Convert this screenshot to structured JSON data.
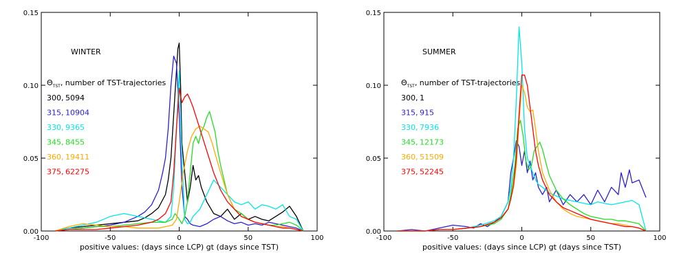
{
  "legend_symbol": "Θ",
  "legend_symbol_sub": "TST",
  "chart_data": [
    {
      "type": "line",
      "title": "WINTER",
      "xlabel": "positive values: (days since LCP) gt (days since TST)",
      "xlim": [
        -100,
        100
      ],
      "ylim": [
        0,
        0.15
      ],
      "xticks": [
        -100,
        -50,
        0,
        50,
        100
      ],
      "yticks": [
        0.0,
        0.05,
        0.1,
        0.15
      ],
      "ytick_labels": [
        "0.00",
        "0.05",
        "0.10",
        "0.15"
      ],
      "legend_header": ", number of TST-trajectories",
      "series": [
        {
          "name": "300",
          "count": "5094",
          "color": "#000000",
          "x": [
            -90,
            -80,
            -70,
            -60,
            -50,
            -40,
            -30,
            -25,
            -20,
            -15,
            -10,
            -8,
            -6,
            -4,
            -2,
            -1,
            0,
            1,
            2,
            4,
            6,
            8,
            10,
            12,
            14,
            16,
            18,
            20,
            25,
            30,
            35,
            40,
            45,
            50,
            55,
            60,
            65,
            70,
            75,
            80,
            85,
            90
          ],
          "y": [
            0.0,
            0.002,
            0.003,
            0.004,
            0.005,
            0.006,
            0.007,
            0.009,
            0.012,
            0.016,
            0.025,
            0.035,
            0.05,
            0.08,
            0.11,
            0.125,
            0.129,
            0.1,
            0.06,
            0.04,
            0.02,
            0.03,
            0.045,
            0.035,
            0.038,
            0.03,
            0.025,
            0.02,
            0.012,
            0.01,
            0.015,
            0.008,
            0.012,
            0.008,
            0.01,
            0.008,
            0.007,
            0.01,
            0.013,
            0.017,
            0.01,
            0.0
          ]
        },
        {
          "name": "315",
          "count": "10904",
          "color": "#2a1fd1",
          "x": [
            -90,
            -80,
            -70,
            -60,
            -50,
            -40,
            -30,
            -25,
            -20,
            -15,
            -12,
            -10,
            -8,
            -6,
            -4,
            -2,
            0,
            2,
            4,
            6,
            8,
            10,
            15,
            20,
            25,
            30,
            35,
            40,
            45,
            50,
            55,
            60,
            65,
            70,
            75,
            80,
            85,
            90
          ],
          "y": [
            0.0,
            0.001,
            0.002,
            0.003,
            0.004,
            0.006,
            0.01,
            0.013,
            0.018,
            0.028,
            0.04,
            0.05,
            0.07,
            0.1,
            0.12,
            0.115,
            0.08,
            0.03,
            0.01,
            0.008,
            0.005,
            0.004,
            0.003,
            0.005,
            0.008,
            0.01,
            0.007,
            0.005,
            0.006,
            0.004,
            0.005,
            0.004,
            0.006,
            0.005,
            0.004,
            0.003,
            0.002,
            0.0
          ]
        },
        {
          "name": "330",
          "count": "9365",
          "color": "#00e6e6",
          "x": [
            -90,
            -80,
            -70,
            -60,
            -50,
            -40,
            -30,
            -20,
            -15,
            -10,
            -6,
            -4,
            -2,
            0,
            2,
            4,
            6,
            8,
            10,
            15,
            20,
            25,
            30,
            35,
            40,
            45,
            50,
            55,
            60,
            65,
            70,
            75,
            80,
            85,
            90
          ],
          "y": [
            0.0,
            0.002,
            0.004,
            0.006,
            0.01,
            0.012,
            0.01,
            0.008,
            0.007,
            0.006,
            0.01,
            0.03,
            0.07,
            0.11,
            0.05,
            0.008,
            0.005,
            0.006,
            0.01,
            0.015,
            0.025,
            0.035,
            0.03,
            0.025,
            0.02,
            0.018,
            0.02,
            0.015,
            0.018,
            0.017,
            0.015,
            0.018,
            0.01,
            0.008,
            0.0
          ]
        },
        {
          "name": "345",
          "count": "8455",
          "color": "#22dd22",
          "x": [
            -90,
            -80,
            -70,
            -60,
            -50,
            -40,
            -30,
            -20,
            -15,
            -10,
            -5,
            -3,
            0,
            2,
            4,
            6,
            8,
            10,
            12,
            14,
            16,
            18,
            20,
            22,
            24,
            26,
            28,
            30,
            35,
            40,
            45,
            50,
            55,
            60,
            65,
            70,
            75,
            80,
            85,
            90
          ],
          "y": [
            0.0,
            0.001,
            0.002,
            0.003,
            0.003,
            0.004,
            0.005,
            0.006,
            0.006,
            0.006,
            0.008,
            0.012,
            0.008,
            0.005,
            0.01,
            0.02,
            0.04,
            0.06,
            0.065,
            0.06,
            0.068,
            0.072,
            0.078,
            0.082,
            0.075,
            0.068,
            0.055,
            0.045,
            0.025,
            0.015,
            0.012,
            0.008,
            0.006,
            0.005,
            0.004,
            0.004,
            0.005,
            0.006,
            0.004,
            0.0
          ]
        },
        {
          "name": "360",
          "count": "19411",
          "color": "#ffaa00",
          "x": [
            -90,
            -80,
            -70,
            -60,
            -50,
            -40,
            -30,
            -20,
            -15,
            -10,
            -5,
            -2,
            0,
            3,
            6,
            9,
            12,
            15,
            18,
            21,
            24,
            27,
            30,
            35,
            40,
            45,
            50,
            55,
            60,
            65,
            70,
            75,
            80,
            85,
            90
          ],
          "y": [
            0.0,
            0.003,
            0.005,
            0.004,
            0.003,
            0.003,
            0.002,
            0.002,
            0.002,
            0.003,
            0.004,
            0.008,
            0.02,
            0.04,
            0.055,
            0.065,
            0.07,
            0.072,
            0.07,
            0.068,
            0.06,
            0.05,
            0.04,
            0.025,
            0.015,
            0.01,
            0.008,
            0.006,
            0.005,
            0.004,
            0.003,
            0.003,
            0.002,
            0.001,
            0.0
          ]
        },
        {
          "name": "375",
          "count": "62275",
          "color": "#ff0000",
          "x": [
            -90,
            -80,
            -70,
            -60,
            -50,
            -40,
            -30,
            -20,
            -15,
            -10,
            -6,
            -4,
            -2,
            0,
            2,
            4,
            6,
            8,
            10,
            15,
            20,
            25,
            30,
            35,
            40,
            45,
            50,
            55,
            60,
            65,
            70,
            75,
            80,
            85,
            90
          ],
          "y": [
            0.0,
            0.001,
            0.001,
            0.001,
            0.002,
            0.003,
            0.004,
            0.006,
            0.008,
            0.012,
            0.02,
            0.04,
            0.07,
            0.098,
            0.088,
            0.092,
            0.094,
            0.09,
            0.085,
            0.07,
            0.055,
            0.04,
            0.028,
            0.02,
            0.015,
            0.01,
            0.008,
            0.006,
            0.005,
            0.004,
            0.003,
            0.002,
            0.002,
            0.001,
            0.0
          ]
        }
      ]
    },
    {
      "type": "line",
      "title": "SUMMER",
      "xlabel": "positive values: (days since LCP) gt (days since TST)",
      "xlim": [
        -100,
        100
      ],
      "ylim": [
        0,
        0.15
      ],
      "xticks": [
        -100,
        -50,
        0,
        50,
        100
      ],
      "yticks": [
        0.0,
        0.05,
        0.1,
        0.15
      ],
      "ytick_labels": [
        "0.00",
        "0.05",
        "0.10",
        "0.15"
      ],
      "legend_header": ", number of TST-trajectories",
      "series": [
        {
          "name": "300",
          "count": "1",
          "color": "#000000",
          "x": [],
          "y": []
        },
        {
          "name": "315",
          "count": "915",
          "color": "#2a1fd1",
          "x": [
            -90,
            -80,
            -70,
            -60,
            -50,
            -40,
            -35,
            -30,
            -25,
            -20,
            -15,
            -10,
            -8,
            -6,
            -4,
            -2,
            0,
            2,
            4,
            6,
            8,
            10,
            12,
            15,
            18,
            20,
            25,
            30,
            35,
            40,
            45,
            50,
            55,
            60,
            65,
            70,
            72,
            75,
            78,
            80,
            85,
            90
          ],
          "y": [
            0.0,
            0.001,
            0.0,
            0.002,
            0.004,
            0.003,
            0.002,
            0.005,
            0.003,
            0.006,
            0.01,
            0.02,
            0.04,
            0.05,
            0.062,
            0.058,
            0.045,
            0.055,
            0.04,
            0.048,
            0.035,
            0.04,
            0.03,
            0.025,
            0.03,
            0.02,
            0.028,
            0.018,
            0.025,
            0.02,
            0.025,
            0.018,
            0.028,
            0.02,
            0.03,
            0.025,
            0.04,
            0.03,
            0.042,
            0.033,
            0.035,
            0.023
          ]
        },
        {
          "name": "330",
          "count": "7936",
          "color": "#00e6e6",
          "x": [
            -90,
            -80,
            -70,
            -60,
            -50,
            -40,
            -30,
            -20,
            -15,
            -10,
            -8,
            -6,
            -4,
            -2,
            0,
            2,
            4,
            6,
            8,
            10,
            12,
            15,
            20,
            25,
            30,
            35,
            40,
            45,
            50,
            55,
            60,
            65,
            70,
            75,
            80,
            85,
            90
          ],
          "y": [
            0.0,
            0.0,
            0.0,
            0.001,
            0.001,
            0.002,
            0.004,
            0.007,
            0.01,
            0.02,
            0.03,
            0.05,
            0.09,
            0.14,
            0.115,
            0.07,
            0.05,
            0.045,
            0.04,
            0.035,
            0.032,
            0.03,
            0.026,
            0.024,
            0.022,
            0.021,
            0.02,
            0.019,
            0.018,
            0.02,
            0.019,
            0.018,
            0.019,
            0.02,
            0.021,
            0.018,
            0.0
          ]
        },
        {
          "name": "345",
          "count": "12173",
          "color": "#22dd22",
          "x": [
            -90,
            -80,
            -70,
            -60,
            -50,
            -40,
            -30,
            -20,
            -15,
            -10,
            -8,
            -5,
            -3,
            -1,
            1,
            3,
            5,
            7,
            9,
            11,
            13,
            15,
            18,
            20,
            25,
            30,
            35,
            40,
            45,
            50,
            55,
            60,
            65,
            70,
            75,
            80,
            85,
            90
          ],
          "y": [
            0.0,
            0.0,
            0.0,
            0.001,
            0.001,
            0.002,
            0.003,
            0.005,
            0.008,
            0.015,
            0.025,
            0.045,
            0.07,
            0.076,
            0.065,
            0.048,
            0.042,
            0.045,
            0.055,
            0.058,
            0.061,
            0.056,
            0.045,
            0.038,
            0.028,
            0.022,
            0.018,
            0.015,
            0.012,
            0.01,
            0.009,
            0.008,
            0.008,
            0.007,
            0.007,
            0.006,
            0.005,
            0.0
          ]
        },
        {
          "name": "360",
          "count": "51509",
          "color": "#ffaa00",
          "x": [
            -90,
            -80,
            -70,
            -60,
            -50,
            -40,
            -30,
            -20,
            -15,
            -10,
            -8,
            -6,
            -4,
            -2,
            0,
            2,
            4,
            6,
            8,
            10,
            12,
            15,
            20,
            25,
            30,
            35,
            40,
            45,
            50,
            55,
            60,
            65,
            70,
            75,
            80,
            85,
            90
          ],
          "y": [
            0.0,
            0.0,
            0.0,
            0.001,
            0.001,
            0.002,
            0.003,
            0.006,
            0.009,
            0.015,
            0.022,
            0.03,
            0.045,
            0.075,
            0.1,
            0.095,
            0.085,
            0.082,
            0.083,
            0.07,
            0.055,
            0.04,
            0.028,
            0.02,
            0.015,
            0.012,
            0.01,
            0.009,
            0.008,
            0.007,
            0.006,
            0.005,
            0.005,
            0.004,
            0.003,
            0.002,
            0.0
          ]
        },
        {
          "name": "375",
          "count": "52245",
          "color": "#ff0000",
          "x": [
            -90,
            -80,
            -70,
            -60,
            -50,
            -40,
            -30,
            -20,
            -15,
            -10,
            -8,
            -6,
            -4,
            -2,
            0,
            2,
            4,
            6,
            8,
            10,
            12,
            15,
            20,
            25,
            30,
            35,
            40,
            45,
            50,
            55,
            60,
            65,
            70,
            75,
            80,
            85,
            90
          ],
          "y": [
            0.0,
            0.0,
            0.0,
            0.001,
            0.001,
            0.002,
            0.003,
            0.006,
            0.009,
            0.015,
            0.022,
            0.032,
            0.05,
            0.08,
            0.107,
            0.107,
            0.1,
            0.085,
            0.07,
            0.055,
            0.045,
            0.035,
            0.025,
            0.02,
            0.016,
            0.014,
            0.012,
            0.01,
            0.008,
            0.007,
            0.006,
            0.005,
            0.004,
            0.003,
            0.003,
            0.002,
            0.0
          ]
        }
      ]
    }
  ]
}
